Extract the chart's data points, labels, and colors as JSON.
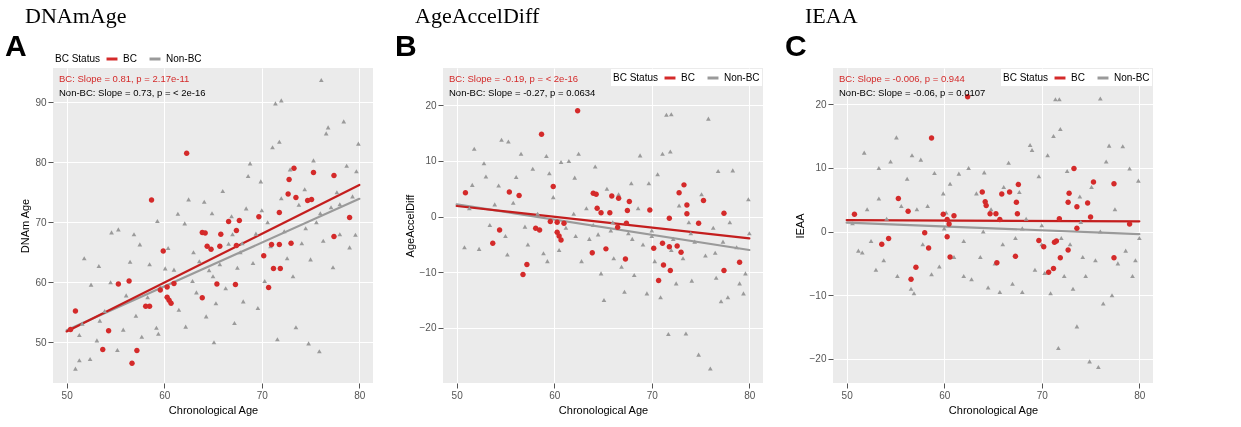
{
  "chart_data": [
    {
      "type": "scatter",
      "title": "DNAmAge",
      "xlabel": "Chronological Age",
      "ylabel": "DNAm Age",
      "legend_title": "BC Status",
      "legend": "top",
      "grid": true,
      "annotations": [
        "A",
        "BC: Slope = 0.81, p = 2.17e-11",
        "Non-BC: Slope = 0.73, p = < 2e-16"
      ],
      "xlim": [
        48.6,
        81.4
      ],
      "xticks": [
        50,
        60,
        70,
        80
      ],
      "ylim": [
        43.2,
        95.7
      ],
      "yticks": [
        50,
        60,
        70,
        80,
        90
      ],
      "series": [
        {
          "name": "BC",
          "color": "#d42a2a",
          "marker": "circle",
          "x": [
            50.9,
            50.4,
            53.7,
            54.3,
            55.3,
            56.4,
            56.7,
            57.2,
            58.1,
            58.5,
            58.7,
            59.6,
            59.9,
            60.3,
            60.3,
            60.5,
            60.7,
            61.0,
            62.3,
            63.9,
            63.9,
            64.2,
            64.4,
            64.8,
            65.4,
            65.7,
            65.8,
            66.6,
            67.3,
            67.4,
            67.7,
            67.4,
            69.7,
            70.2,
            70.7,
            71.0,
            71.2,
            71.8,
            71.9,
            71.8,
            72.7,
            72.8,
            73.0,
            73.3,
            73.5,
            74.7,
            75.1,
            75.3,
            77.4,
            77.4,
            79.0
          ],
          "values": [
            55.2,
            52.1,
            48.8,
            51.9,
            59.7,
            60.2,
            46.5,
            48.6,
            56.0,
            56.0,
            73.7,
            58.7,
            65.2,
            59.2,
            57.5,
            57.0,
            56.5,
            59.8,
            81.5,
            57.4,
            68.3,
            68.2,
            66.0,
            65.5,
            59.7,
            66.0,
            68.0,
            70.1,
            59.6,
            68.6,
            70.3,
            66.1,
            70.9,
            64.4,
            59.1,
            66.3,
            62.3,
            71.6,
            62.3,
            66.3,
            74.7,
            77.1,
            66.5,
            79.0,
            74.1,
            73.6,
            73.8,
            78.3,
            77.8,
            67.6,
            70.8
          ]
        },
        {
          "name": "Non-BC",
          "color": "#9a9a9a",
          "marker": "triangle",
          "x": [
            50.9,
            51.3,
            51.3,
            51.6,
            51.8,
            52.4,
            52.5,
            53.1,
            53.3,
            53.4,
            53.9,
            54.5,
            54.6,
            55.2,
            55.3,
            55.8,
            56.1,
            56.5,
            56.9,
            57.1,
            57.5,
            57.7,
            58.3,
            58.5,
            59.2,
            59.3,
            59.4,
            59.6,
            60.1,
            60.4,
            61.0,
            61.4,
            61.5,
            62.1,
            62.2,
            62.5,
            62.9,
            63.3,
            63.6,
            64.1,
            64.3,
            64.6,
            64.9,
            65.1,
            65.3,
            65.7,
            66.0,
            66.3,
            66.6,
            66.9,
            67.2,
            67.5,
            67.8,
            68.1,
            68.4,
            68.6,
            68.8,
            69.1,
            69.4,
            69.6,
            69.9,
            70.3,
            70.6,
            70.9,
            71.1,
            71.4,
            71.6,
            71.8,
            72.0,
            72.3,
            72.6,
            72.9,
            73.2,
            73.5,
            73.8,
            74.1,
            74.4,
            74.8,
            75.0,
            75.3,
            75.6,
            75.9,
            76.1,
            76.3,
            76.6,
            76.8,
            77.1,
            77.3,
            77.7,
            78.0,
            78.4,
            78.7,
            79.0,
            79.3,
            79.6,
            79.9,
            79.7,
            68.0,
            70.0,
            72.0,
            67.0,
            65.0,
            63.0,
            74.5,
            76.0,
            78.0
          ],
          "values": [
            45.6,
            47.0,
            51.2,
            53.1,
            64.0,
            47.2,
            59.6,
            50.3,
            62.7,
            53.6,
            55.2,
            60.0,
            68.3,
            48.7,
            68.8,
            52.1,
            57.8,
            63.4,
            68.0,
            54.4,
            66.3,
            50.9,
            57.5,
            63.0,
            52.4,
            70.2,
            51.4,
            59.2,
            62.3,
            65.7,
            62.1,
            71.4,
            55.4,
            69.8,
            52.6,
            73.8,
            60.2,
            58.3,
            63.5,
            73.4,
            54.3,
            62.0,
            71.5,
            50.0,
            56.5,
            63.0,
            75.2,
            59.0,
            66.4,
            71.0,
            53.2,
            62.4,
            65.0,
            56.8,
            72.3,
            77.7,
            79.8,
            63.2,
            68.1,
            55.7,
            76.8,
            60.2,
            70.0,
            66.0,
            82.5,
            89.8,
            50.5,
            83.4,
            90.3,
            68.5,
            64.0,
            78.8,
            61.0,
            52.5,
            72.9,
            66.5,
            75.5,
            49.8,
            63.8,
            80.3,
            70.0,
            48.5,
            93.7,
            66.9,
            84.8,
            85.8,
            72.5,
            62.5,
            75.0,
            68.0,
            86.8,
            79.4,
            65.8,
            74.3,
            67.9,
            83.1,
            78.5,
            66.5,
            72.0,
            74.0,
            68.0,
            61.0,
            65.0,
            69.0,
            71.5,
            73.0
          ]
        },
        {
          "color": "#c41e1e",
          "type": "line",
          "x": [
            50,
            80
          ],
          "values": [
            51.8,
            76.2
          ]
        },
        {
          "color": "#9a9a9a",
          "type": "line",
          "x": [
            50,
            80
          ],
          "values": [
            52.0,
            73.9
          ]
        }
      ]
    },
    {
      "type": "scatter",
      "title": "AgeAccelDiff",
      "xlabel": "Chronological Age",
      "ylabel": "AgeAccelDiff",
      "legend_title": "BC Status",
      "legend": "top right",
      "grid": true,
      "annotations": [
        "B",
        "BC: Slope = -0.19, p = < 2e-16",
        "Non-BC: Slope = -0.27, p = 0.0634"
      ],
      "xlim": [
        48.6,
        81.4
      ],
      "xticks": [
        50,
        60,
        70,
        80
      ],
      "ylim": [
        -29.9,
        26.7
      ],
      "yticks": [
        -20,
        -10,
        0,
        10,
        20
      ],
      "series": [
        {
          "name": "BC",
          "color": "#d42a2a",
          "marker": "circle",
          "x": [
            50.9,
            53.7,
            54.4,
            55.4,
            56.4,
            56.8,
            57.2,
            58.1,
            58.5,
            58.7,
            59.6,
            59.9,
            60.3,
            60.3,
            60.5,
            60.7,
            61.0,
            62.4,
            63.9,
            64.0,
            64.3,
            64.4,
            64.8,
            65.3,
            65.7,
            65.9,
            66.6,
            66.5,
            67.3,
            67.4,
            67.5,
            67.7,
            69.8,
            70.2,
            70.7,
            71.1,
            71.2,
            71.8,
            71.8,
            71.9,
            72.6,
            72.8,
            73.3,
            73.6,
            73.6,
            73.0,
            74.8,
            75.3,
            77.4,
            77.4,
            79.0
          ],
          "values": [
            4.3,
            -4.8,
            -2.4,
            4.4,
            3.8,
            -10.4,
            -8.6,
            -2.1,
            -2.4,
            14.8,
            -0.9,
            5.4,
            -1.0,
            -2.8,
            -3.5,
            -4.2,
            -1.2,
            19.0,
            -6.5,
            4.2,
            4.0,
            1.5,
            0.7,
            -5.8,
            0.7,
            3.7,
            3.3,
            -1.9,
            -7.6,
            -1.2,
            1.1,
            2.7,
            1.2,
            -5.7,
            -11.5,
            -4.8,
            -8.7,
            -0.3,
            -5.4,
            -9.7,
            -5.3,
            4.3,
            5.7,
            0.5,
            2.1,
            -6.4,
            -1.2,
            2.9,
            0.6,
            -9.7,
            -8.2
          ]
        },
        {
          "name": "Non-BC",
          "color": "#9a9a9a",
          "marker": "triangle",
          "x": [
            50.8,
            51.3,
            51.6,
            51.8,
            52.3,
            52.8,
            53.0,
            53.4,
            53.9,
            54.3,
            54.6,
            55.0,
            55.3,
            55.2,
            55.8,
            56.1,
            56.6,
            57.0,
            57.3,
            57.8,
            58.3,
            58.9,
            59.2,
            59.3,
            59.5,
            59.9,
            60.5,
            60.7,
            61.2,
            61.5,
            62.1,
            62.5,
            62.2,
            62.8,
            63.3,
            63.6,
            64.2,
            64.5,
            64.8,
            65.1,
            65.4,
            65.8,
            66.1,
            66.6,
            66.9,
            67.2,
            67.6,
            67.9,
            68.2,
            68.6,
            68.8,
            69.1,
            69.5,
            69.7,
            70.0,
            70.3,
            70.6,
            70.9,
            71.1,
            71.5,
            71.7,
            71.9,
            72.0,
            72.2,
            72.5,
            72.8,
            73.2,
            73.5,
            73.8,
            74.1,
            74.4,
            74.8,
            75.1,
            75.5,
            75.8,
            76.0,
            76.3,
            76.6,
            76.8,
            77.1,
            77.3,
            77.8,
            78.0,
            78.3,
            78.7,
            79.0,
            79.4,
            79.6,
            79.9,
            80.0,
            68.0,
            70.0,
            66.0,
            72.0,
            64.0,
            62.0,
            74.0,
            76.5
          ],
          "values": [
            -5.5,
            1.5,
            5.7,
            12.2,
            -5.8,
            9.6,
            7.2,
            -1.5,
            2.2,
            5.6,
            13.8,
            -3.5,
            13.5,
            -6.8,
            2.5,
            7.1,
            11.3,
            -1.8,
            -5.0,
            8.6,
            0.5,
            -6.6,
            10.9,
            -8.0,
            7.8,
            3.5,
            -6.0,
            9.8,
            -2.0,
            10.0,
            7.0,
            11.3,
            -3.5,
            -8.0,
            1.5,
            -4.0,
            9.0,
            -3.2,
            -10.2,
            -15.0,
            5.0,
            -2.5,
            -7.5,
            4.0,
            -9.0,
            -13.5,
            -3.0,
            6.0,
            -10.5,
            1.5,
            11.0,
            -5.0,
            -13.8,
            6.0,
            -2.5,
            -8.0,
            7.6,
            -14.5,
            11.3,
            18.3,
            -21.1,
            11.7,
            18.4,
            -4.0,
            -12.0,
            2.0,
            -7.5,
            -21.0,
            -1.0,
            -11.5,
            -4.5,
            -24.8,
            4.0,
            -7.0,
            17.6,
            -27.3,
            -2.0,
            -11.0,
            8.2,
            -15.2,
            -4.5,
            -14.5,
            -1.0,
            8.3,
            -5.5,
            -12.0,
            -13.8,
            -10.2,
            3.1,
            -3.0,
            -4.0,
            -3.5,
            -1.0,
            -6.0,
            -1.5,
            0.5,
            -3.0,
            -6.5
          ]
        },
        {
          "color": "#c41e1e",
          "type": "line",
          "x": [
            50,
            80
          ],
          "values": [
            1.9,
            -3.9
          ]
        },
        {
          "color": "#9a9a9a",
          "type": "line",
          "x": [
            50,
            80
          ],
          "values": [
            2.2,
            -6.0
          ]
        }
      ]
    },
    {
      "type": "scatter",
      "title": "IEAA",
      "xlabel": "Chronological Age",
      "ylabel": "IEAA",
      "legend_title": "BC Status",
      "legend": "top right",
      "grid": true,
      "annotations": [
        "C",
        "BC: Slope = -0.006, p = 0.944",
        "Non-BC: Slope = -0.06, p = 0.0107"
      ],
      "xlim": [
        48.6,
        81.4
      ],
      "xticks": [
        50,
        60,
        70,
        80
      ],
      "ylim": [
        -23.8,
        25.7
      ],
      "yticks": [
        -20,
        -10,
        0,
        10,
        20
      ],
      "series": [
        {
          "name": "BC",
          "color": "#d42a2a",
          "marker": "circle",
          "x": [
            50.8,
            53.6,
            54.3,
            55.3,
            56.3,
            56.6,
            57.1,
            58.0,
            58.4,
            58.7,
            59.9,
            60.3,
            60.3,
            60.5,
            60.6,
            61.0,
            62.4,
            63.9,
            64.2,
            64.3,
            64.7,
            65.3,
            65.4,
            65.7,
            65.9,
            66.7,
            67.3,
            67.4,
            67.5,
            67.6,
            69.7,
            70.2,
            70.7,
            71.2,
            71.3,
            71.5,
            71.8,
            71.9,
            72.7,
            72.8,
            72.7,
            73.3,
            73.6,
            73.6,
            74.7,
            75.0,
            75.3,
            77.4,
            77.4,
            79.0
          ],
          "values": [
            2.7,
            -2.0,
            -1.1,
            5.2,
            3.2,
            -7.5,
            -5.6,
            -0.2,
            -2.6,
            14.7,
            2.7,
            -0.8,
            1.9,
            1.2,
            -4.0,
            2.5,
            21.2,
            6.2,
            4.7,
            4.1,
            2.8,
            2.8,
            -4.9,
            1.9,
            5.9,
            6.2,
            -3.9,
            4.6,
            2.8,
            7.4,
            -1.4,
            -2.4,
            -6.4,
            -5.8,
            -1.7,
            -1.5,
            2.0,
            -4.1,
            4.6,
            6.0,
            -2.9,
            9.9,
            3.9,
            0.5,
            4.5,
            2.3,
            7.8,
            7.5,
            -4.1,
            1.2
          ]
        },
        {
          "name": "Non-BC",
          "color": "#9a9a9a",
          "marker": "triangle",
          "x": [
            50.6,
            51.2,
            51.6,
            51.8,
            52.1,
            52.5,
            53.0,
            53.3,
            53.3,
            53.8,
            54.1,
            54.5,
            55.1,
            55.2,
            55.6,
            56.2,
            56.6,
            56.7,
            56.9,
            57.2,
            57.6,
            57.8,
            58.3,
            58.7,
            59.0,
            59.5,
            59.9,
            60.2,
            60.6,
            61.0,
            61.5,
            62.0,
            62.5,
            62.8,
            63.3,
            63.7,
            64.1,
            64.5,
            64.8,
            65.2,
            65.7,
            66.1,
            66.6,
            67.0,
            67.3,
            67.7,
            68.0,
            68.4,
            68.8,
            69.0,
            69.3,
            69.7,
            70.0,
            70.3,
            70.6,
            70.9,
            71.2,
            71.4,
            71.7,
            71.8,
            71.9,
            72.3,
            72.6,
            72.9,
            73.2,
            73.6,
            73.9,
            74.2,
            74.5,
            74.9,
            75.1,
            75.5,
            75.8,
            76.0,
            76.3,
            76.6,
            76.9,
            77.2,
            77.5,
            77.8,
            78.3,
            78.6,
            79.0,
            79.3,
            79.6,
            79.9,
            80.0,
            68.0,
            70.0,
            66.0,
            72.0,
            64.0,
            74.0,
            76.0,
            62.0,
            60.0
          ],
          "values": [
            1.3,
            -3.0,
            -3.3,
            12.4,
            3.5,
            -1.5,
            -6.0,
            10.0,
            5.2,
            -4.5,
            2.0,
            11.0,
            14.8,
            -7.0,
            4.0,
            8.3,
            -9.0,
            12.0,
            -9.7,
            3.5,
            11.3,
            -2.0,
            4.0,
            -6.7,
            9.2,
            -5.5,
            6.0,
            3.0,
            7.5,
            -4.0,
            9.1,
            -7.0,
            10.0,
            -7.5,
            6.0,
            -4.0,
            9.3,
            -8.8,
            3.5,
            -5.0,
            -9.5,
            7.0,
            10.8,
            -8.2,
            -1.0,
            6.2,
            -9.5,
            2.0,
            13.6,
            12.8,
            -6.0,
            8.7,
            -2.0,
            -6.5,
            12.0,
            -9.7,
            15.0,
            20.8,
            -18.3,
            20.8,
            16.1,
            -7.0,
            9.5,
            -2.0,
            -9.0,
            -14.9,
            5.5,
            -4.0,
            -7.0,
            -20.4,
            7.0,
            -4.5,
            -21.3,
            20.9,
            -11.3,
            11.0,
            13.5,
            -10.0,
            3.5,
            -5.0,
            13.4,
            -3.0,
            9.9,
            -7.0,
            -4.5,
            8.0,
            -1.0,
            0.5,
            1.0,
            -2.0,
            -1.0,
            0.0,
            1.5,
            0.0,
            -1.5,
            0.5
          ]
        },
        {
          "color": "#c41e1e",
          "type": "line",
          "x": [
            50,
            80
          ],
          "values": [
            1.8,
            1.6
          ]
        },
        {
          "color": "#9a9a9a",
          "type": "line",
          "x": [
            50,
            80
          ],
          "values": [
            1.4,
            -0.4
          ]
        }
      ]
    }
  ]
}
